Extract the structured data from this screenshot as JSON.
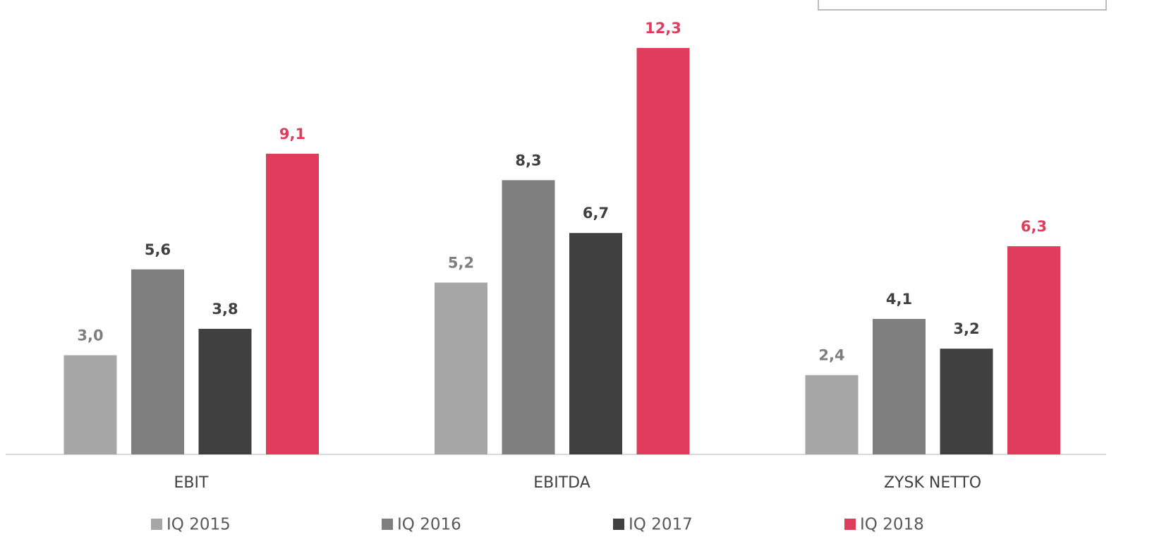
{
  "chart_data": {
    "type": "bar",
    "categories": [
      "EBIT",
      "EBITDA",
      "ZYSK NETTO"
    ],
    "series": [
      {
        "name": "IQ 2015",
        "color": "#a6a6a6",
        "label_color": "#7f7f7f",
        "values": [
          3.0,
          5.2,
          2.4
        ],
        "value_labels": [
          "3,0",
          "5,2",
          "2,4"
        ]
      },
      {
        "name": "IQ 2016",
        "color": "#7f7f7f",
        "label_color": "#404040",
        "values": [
          5.6,
          8.3,
          4.1
        ],
        "value_labels": [
          "5,6",
          "8,3",
          "4,1"
        ]
      },
      {
        "name": "IQ 2017",
        "color": "#404040",
        "label_color": "#404040",
        "values": [
          3.8,
          6.7,
          3.2
        ],
        "value_labels": [
          "3,8",
          "6,7",
          "3,2"
        ]
      },
      {
        "name": "IQ 2018",
        "color": "#e03c5c",
        "label_color": "#e03c5c",
        "values": [
          9.1,
          12.3,
          6.3
        ],
        "value_labels": [
          "9,1",
          "12,3",
          "6,3"
        ]
      }
    ],
    "legend": "bottom"
  }
}
